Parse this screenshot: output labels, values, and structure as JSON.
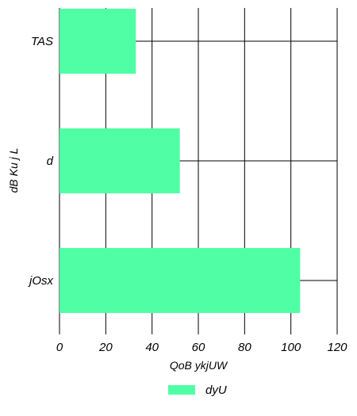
{
  "chart_data": {
    "type": "bar",
    "orientation": "horizontal",
    "categories": [
      "TAS",
      "d",
      "jOsx"
    ],
    "series": [
      {
        "name": "dyU",
        "values": [
          33,
          52,
          104
        ],
        "color": "#50FFA5"
      }
    ],
    "xlabel": "QoB ykjUW",
    "ylabel": "dB Ku j L",
    "xlim": [
      0,
      120
    ],
    "xticks": [
      "0",
      "20",
      "40",
      "60",
      "80",
      "100",
      "120"
    ],
    "grid": true,
    "legend": "bottom-center"
  }
}
